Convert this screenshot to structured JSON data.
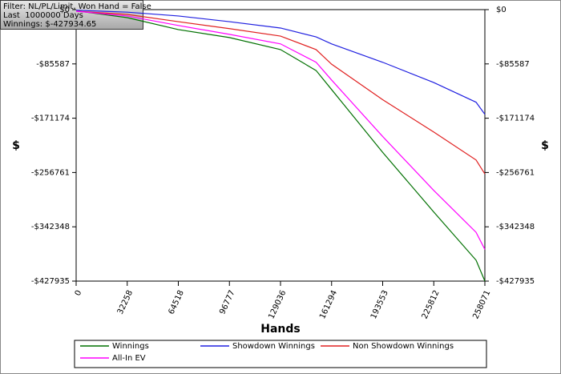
{
  "chart_data": {
    "type": "line",
    "annotations": [
      "Filter: NL/PL/Limit, Won Hand = False",
      "Last  1000000 Days",
      "Winnings: $-427934.65"
    ],
    "xlabel": "Hands",
    "ylabel": "$",
    "x": [
      0,
      32258,
      64518,
      96777,
      129036,
      151512,
      161294,
      193553,
      225812,
      252520,
      258071
    ],
    "series": [
      {
        "name": "Winnings",
        "color": "#007000",
        "values": [
          -2000,
          -12600,
          -31500,
          -44000,
          -63000,
          -96000,
          -126000,
          -225000,
          -319000,
          -395000,
          -427935
        ]
      },
      {
        "name": "Showdown Winnings",
        "color": "#2020e0",
        "values": [
          -1000,
          -4000,
          -10000,
          -19000,
          -29000,
          -43000,
          -54000,
          -83000,
          -115000,
          -146000,
          -165000
        ]
      },
      {
        "name": "Non Showdown Winnings",
        "color": "#e02020",
        "values": [
          -2500,
          -7600,
          -19000,
          -30000,
          -41700,
          -63000,
          -86000,
          -142000,
          -193000,
          -237000,
          -259000
        ]
      },
      {
        "name": "All-In EV",
        "color": "#ff00ff",
        "values": [
          -2500,
          -10000,
          -25000,
          -39000,
          -54000,
          -83000,
          -111000,
          -200000,
          -285000,
          -351000,
          -378000
        ]
      }
    ],
    "xlim": [
      0,
      258071
    ],
    "ylim": [
      -427935,
      0
    ],
    "xticks": [
      0,
      32258,
      64518,
      96777,
      129036,
      161294,
      193553,
      225812,
      258071
    ],
    "yticks": [
      {
        "value": 0,
        "label": "$0"
      },
      {
        "value": -85587,
        "label": "-$85587"
      },
      {
        "value": -171174,
        "label": "-$171174"
      },
      {
        "value": -256761,
        "label": "-$256761"
      },
      {
        "value": -342348,
        "label": "-$342348"
      },
      {
        "value": -427935,
        "label": "-$427935"
      }
    ]
  }
}
